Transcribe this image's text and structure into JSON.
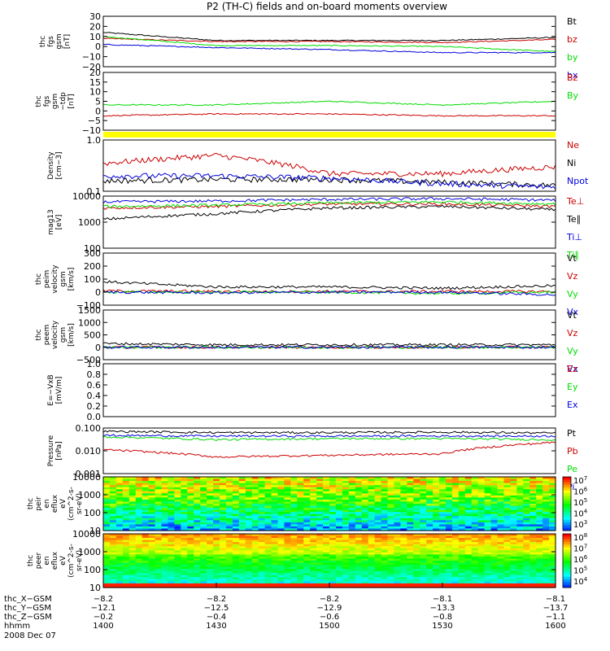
{
  "title": "P2 (TH-C) fields and on-board moments overview",
  "colors": {
    "black": "#000000",
    "red": "#cc0000",
    "green": "#00dd00",
    "blue": "#0000dd",
    "yellow": "#ffff00"
  },
  "panels": [
    {
      "id": "fgs_gsm",
      "ylabel": [
        "thc",
        "fgs",
        "gsm",
        "[nT]"
      ],
      "yticks": [
        "30",
        "20",
        "10",
        "0",
        "−10",
        "−20"
      ],
      "ylim": [
        -20,
        30
      ],
      "scale": "linear",
      "legend": [
        {
          "label": "Bt",
          "color": "#000000"
        },
        {
          "label": "bz",
          "color": "#cc0000"
        },
        {
          "label": "by",
          "color": "#00dd00"
        },
        {
          "label": "bx",
          "color": "#0000dd"
        }
      ]
    },
    {
      "id": "fgs_gsm_tdp",
      "ylabel": [
        "thc",
        "fgs",
        "gsm",
        "−tdp",
        "[nT]"
      ],
      "yticks": [
        "20",
        "15",
        "10",
        "5",
        "0",
        "−5",
        "−10"
      ],
      "ylim": [
        -12,
        20
      ],
      "scale": "linear",
      "legend": [
        {
          "label": "Bz",
          "color": "#cc0000"
        },
        {
          "label": "By",
          "color": "#00dd00"
        }
      ]
    },
    {
      "id": "density",
      "ylabel": [
        "Density",
        "[cm−3]"
      ],
      "yticks": [
        "1.0",
        "0.1"
      ],
      "ylim": [
        0.1,
        1.0
      ],
      "scale": "log",
      "legend": [
        {
          "label": "Ne",
          "color": "#cc0000"
        },
        {
          "label": "Ni",
          "color": "#000000"
        },
        {
          "label": "Npot",
          "color": "#0000dd"
        }
      ]
    },
    {
      "id": "temperature",
      "ylabel": [
        "mag13",
        "[eV]"
      ],
      "yticks": [
        "10000",
        "1000",
        "100"
      ],
      "ylim": [
        100,
        10000
      ],
      "scale": "log",
      "legend": [
        {
          "label": "Te⊥",
          "color": "#cc0000"
        },
        {
          "label": "Te∥",
          "color": "#000000"
        },
        {
          "label": "Ti⊥",
          "color": "#0000dd"
        },
        {
          "label": "Ti∥",
          "color": "#00dd00"
        }
      ]
    },
    {
      "id": "peim_velocity",
      "ylabel": [
        "thc",
        "peim",
        "velocity",
        "gsm",
        "[km/s]"
      ],
      "yticks": [
        "300",
        "200",
        "100",
        "0",
        "−100"
      ],
      "ylim": [
        -100,
        300
      ],
      "scale": "linear",
      "legend": [
        {
          "label": "Vt",
          "color": "#000000"
        },
        {
          "label": "Vz",
          "color": "#cc0000"
        },
        {
          "label": "Vy",
          "color": "#00dd00"
        },
        {
          "label": "Vx",
          "color": "#0000dd"
        }
      ]
    },
    {
      "id": "peem_velocity",
      "ylabel": [
        "thc",
        "peem",
        "velocity",
        "gsm",
        "[km/s]"
      ],
      "yticks": [
        "1500",
        "1000",
        "500",
        "0",
        "−500"
      ],
      "ylim": [
        -500,
        1500
      ],
      "scale": "linear",
      "legend": [
        {
          "label": "Vt",
          "color": "#000000"
        },
        {
          "label": "Vz",
          "color": "#cc0000"
        },
        {
          "label": "Vy",
          "color": "#00dd00"
        },
        {
          "label": "Vx",
          "color": "#0000dd"
        }
      ]
    },
    {
      "id": "efield",
      "ylabel": [
        "E=−VxB",
        "[mV/m]"
      ],
      "yticks": [
        "1.0",
        "0.8",
        "0.6",
        "0.4",
        "0.2",
        "0.0"
      ],
      "ylim": [
        0.0,
        1.0
      ],
      "scale": "linear",
      "legend": [
        {
          "label": "Ez",
          "color": "#cc0000"
        },
        {
          "label": "Ey",
          "color": "#00dd00"
        },
        {
          "label": "Ex",
          "color": "#0000dd"
        }
      ]
    },
    {
      "id": "pressure",
      "ylabel": [
        "Pressure",
        "[nPa]"
      ],
      "yticks": [
        "0.100",
        "0.010",
        "0.001"
      ],
      "ylim": [
        0.001,
        0.3
      ],
      "scale": "log",
      "legend": [
        {
          "label": "Pt",
          "color": "#000000"
        },
        {
          "label": "Pb",
          "color": "#cc0000"
        },
        {
          "label": "Pe",
          "color": "#00dd00"
        },
        {
          "label": "Pi",
          "color": "#0000dd"
        }
      ]
    },
    {
      "id": "peir_spec",
      "ylabel": [
        "thc",
        "peir",
        "en",
        "eflux",
        "eV",
        "(cm^2-s-",
        "sr-eV)"
      ],
      "yticks": [
        "10000",
        "1000",
        "100",
        "10"
      ],
      "colorbar": [
        "10^7",
        "10^6",
        "10^5",
        "10^4",
        "10^3"
      ]
    },
    {
      "id": "peer_spec",
      "ylabel": [
        "thc",
        "peer",
        "en",
        "eflux",
        "eV",
        "(cm^2-s-",
        "sr-eV)"
      ],
      "yticks": [
        "10000",
        "1000",
        "100",
        "10"
      ],
      "colorbar": [
        "10^8",
        "10^7",
        "10^6",
        "10^5",
        "10^4"
      ]
    }
  ],
  "xaxis": {
    "rows": [
      {
        "label": "thc_X−GSM",
        "values": [
          "−8.2",
          "−8.2",
          "−8.2",
          "−8.1",
          "−8.1"
        ]
      },
      {
        "label": "thc_Y−GSM",
        "values": [
          "−12.1",
          "−12.5",
          "−12.9",
          "−13.3",
          "−13.7"
        ]
      },
      {
        "label": "thc_Z−GSM",
        "values": [
          "−0.2",
          "−0.4",
          "−0.6",
          "−0.8",
          "−1.1"
        ]
      },
      {
        "label": "hhmm",
        "values": [
          "1400",
          "1430",
          "1500",
          "1530",
          "1600"
        ]
      }
    ],
    "date": "2008 Dec 07"
  },
  "chart_data": {
    "type": "line",
    "title": "P2 (TH-C) fields and on-board moments overview",
    "x": [
      "1400",
      "1430",
      "1500",
      "1530",
      "1600"
    ],
    "xlabel": "hhmm",
    "series": [
      {
        "panel": "fgs_gsm",
        "name": "Bt",
        "values": [
          14,
          6,
          6,
          6,
          9
        ]
      },
      {
        "panel": "fgs_gsm",
        "name": "bz",
        "values": [
          8,
          5,
          5,
          4,
          7
        ]
      },
      {
        "panel": "fgs_gsm",
        "name": "by",
        "values": [
          10,
          1,
          1,
          0,
          -5
        ]
      },
      {
        "panel": "fgs_gsm",
        "name": "bx",
        "values": [
          2,
          -1,
          -3,
          -6,
          -6
        ]
      },
      {
        "panel": "fgs_gsm_tdp",
        "name": "Bz",
        "values": [
          -4,
          -3,
          -3,
          -4,
          -4
        ]
      },
      {
        "panel": "fgs_gsm_tdp",
        "name": "By",
        "values": [
          2,
          2,
          4,
          2,
          4
        ]
      },
      {
        "panel": "density",
        "name": "Ne",
        "values": [
          0.35,
          0.5,
          0.22,
          0.22,
          0.3
        ]
      },
      {
        "panel": "density",
        "name": "Ni",
        "values": [
          0.16,
          0.17,
          0.17,
          0.15,
          0.13
        ]
      },
      {
        "panel": "density",
        "name": "Npot",
        "values": [
          0.2,
          0.2,
          0.18,
          0.14,
          0.12
        ]
      },
      {
        "panel": "temperature",
        "name": "Te⊥",
        "values": [
          3500,
          4000,
          5000,
          5000,
          4000
        ]
      },
      {
        "panel": "temperature",
        "name": "Te∥",
        "values": [
          1300,
          2100,
          3500,
          4000,
          3000
        ]
      },
      {
        "panel": "temperature",
        "name": "Ti⊥",
        "values": [
          6000,
          6500,
          7500,
          8000,
          7000
        ]
      },
      {
        "panel": "temperature",
        "name": "Ti∥",
        "values": [
          4000,
          4500,
          5500,
          6000,
          5000
        ]
      },
      {
        "panel": "peim_velocity",
        "name": "Vt",
        "values": [
          80,
          40,
          40,
          30,
          50
        ]
      },
      {
        "panel": "peim_velocity",
        "name": "Vz",
        "values": [
          10,
          5,
          5,
          5,
          5
        ]
      },
      {
        "panel": "peim_velocity",
        "name": "Vy",
        "values": [
          0,
          0,
          0,
          -10,
          0
        ]
      },
      {
        "panel": "peim_velocity",
        "name": "Vx",
        "values": [
          0,
          -5,
          0,
          0,
          -20
        ]
      },
      {
        "panel": "peem_velocity",
        "name": "Vt",
        "values": [
          150,
          100,
          100,
          100,
          100
        ]
      },
      {
        "panel": "peem_velocity",
        "name": "Vz",
        "values": [
          0,
          0,
          0,
          0,
          0
        ]
      },
      {
        "panel": "peem_velocity",
        "name": "Vy",
        "values": [
          0,
          0,
          0,
          0,
          0
        ]
      },
      {
        "panel": "peem_velocity",
        "name": "Vx",
        "values": [
          0,
          0,
          0,
          0,
          0
        ]
      },
      {
        "panel": "pressure",
        "name": "Pt",
        "values": [
          0.2,
          0.17,
          0.17,
          0.18,
          0.16
        ]
      },
      {
        "panel": "pressure",
        "name": "Pb",
        "values": [
          0.02,
          0.008,
          0.01,
          0.012,
          0.05
        ]
      },
      {
        "panel": "pressure",
        "name": "Pe",
        "values": [
          0.1,
          0.07,
          0.08,
          0.08,
          0.07
        ]
      },
      {
        "panel": "pressure",
        "name": "Pi",
        "values": [
          0.12,
          0.11,
          0.11,
          0.11,
          0.11
        ]
      }
    ]
  }
}
